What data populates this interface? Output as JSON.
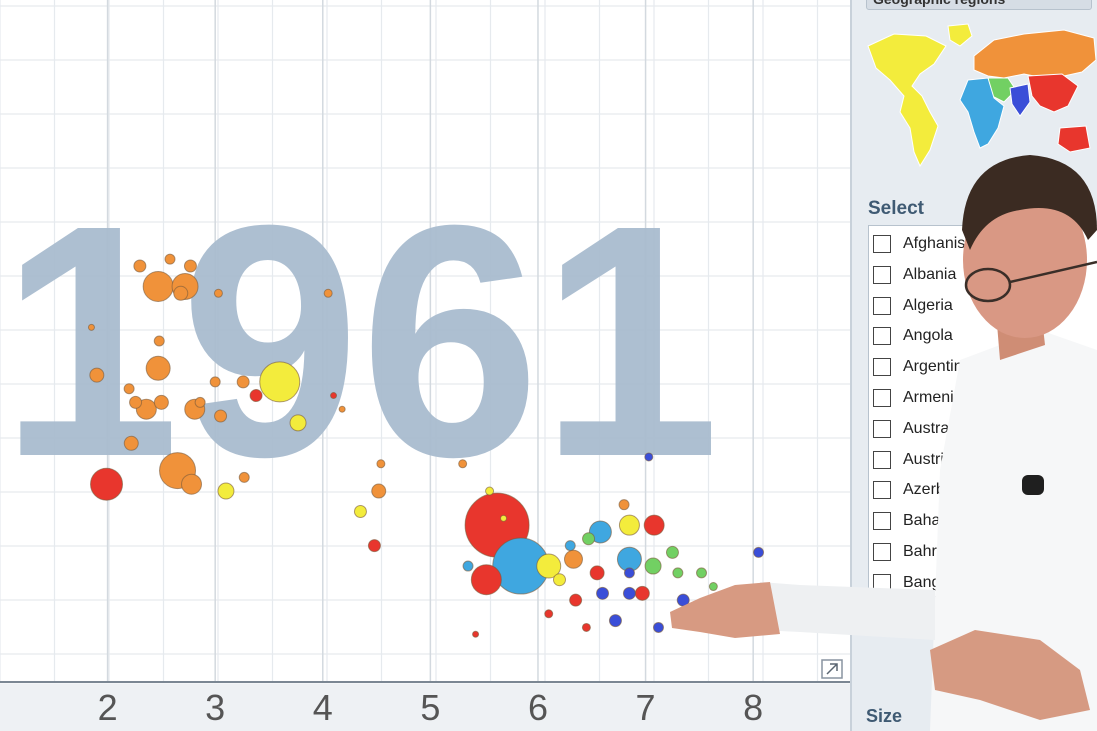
{
  "chart_data": {
    "type": "scatter",
    "title": "",
    "year": "1961",
    "xlabel": "",
    "ylabel": "",
    "xlim": [
      1,
      8.9
    ],
    "ylim": [
      0,
      100
    ],
    "x_ticks": [
      "2",
      "3",
      "4",
      "5",
      "6",
      "7",
      "8"
    ],
    "grid": true,
    "region_colors": {
      "orange": "#f0923a",
      "yellow": "#f3ec3c",
      "red": "#e8362d",
      "blue": "#3a4ed8",
      "cyan": "#3fa7e0",
      "green": "#72d063"
    },
    "points": [
      {
        "x": 1.99,
        "y": 29,
        "r": 16,
        "region": "red"
      },
      {
        "x": 2.47,
        "y": 58,
        "r": 15,
        "region": "orange"
      },
      {
        "x": 2.72,
        "y": 58,
        "r": 13,
        "region": "orange"
      },
      {
        "x": 2.77,
        "y": 61,
        "r": 6,
        "region": "orange"
      },
      {
        "x": 2.58,
        "y": 62,
        "r": 5,
        "region": "orange"
      },
      {
        "x": 2.68,
        "y": 57,
        "r": 7,
        "region": "orange"
      },
      {
        "x": 2.3,
        "y": 61,
        "r": 6,
        "region": "orange"
      },
      {
        "x": 2.47,
        "y": 46,
        "r": 12,
        "region": "orange"
      },
      {
        "x": 1.9,
        "y": 45,
        "r": 7,
        "region": "orange"
      },
      {
        "x": 2.48,
        "y": 50,
        "r": 5,
        "region": "orange"
      },
      {
        "x": 2.36,
        "y": 40,
        "r": 10,
        "region": "orange"
      },
      {
        "x": 2.26,
        "y": 41,
        "r": 6,
        "region": "orange"
      },
      {
        "x": 2.81,
        "y": 40,
        "r": 10,
        "region": "orange"
      },
      {
        "x": 3.05,
        "y": 39,
        "r": 6,
        "region": "orange"
      },
      {
        "x": 2.22,
        "y": 35,
        "r": 7,
        "region": "orange"
      },
      {
        "x": 2.65,
        "y": 31,
        "r": 18,
        "region": "orange"
      },
      {
        "x": 2.78,
        "y": 29,
        "r": 10,
        "region": "orange"
      },
      {
        "x": 2.2,
        "y": 43,
        "r": 5,
        "region": "orange"
      },
      {
        "x": 2.5,
        "y": 41,
        "r": 7,
        "region": "orange"
      },
      {
        "x": 3.0,
        "y": 44,
        "r": 5,
        "region": "orange"
      },
      {
        "x": 2.86,
        "y": 41,
        "r": 5,
        "region": "orange"
      },
      {
        "x": 1.85,
        "y": 52,
        "r": 3,
        "region": "orange"
      },
      {
        "x": 3.03,
        "y": 57,
        "r": 4,
        "region": "orange"
      },
      {
        "x": 3.26,
        "y": 44,
        "r": 6,
        "region": "orange"
      },
      {
        "x": 3.6,
        "y": 44,
        "r": 20,
        "region": "yellow"
      },
      {
        "x": 3.38,
        "y": 42,
        "r": 6,
        "region": "red"
      },
      {
        "x": 3.77,
        "y": 38,
        "r": 8,
        "region": "yellow"
      },
      {
        "x": 3.1,
        "y": 28,
        "r": 8,
        "region": "yellow"
      },
      {
        "x": 3.27,
        "y": 30,
        "r": 5,
        "region": "orange"
      },
      {
        "x": 4.05,
        "y": 57,
        "r": 4,
        "region": "orange"
      },
      {
        "x": 4.1,
        "y": 42,
        "r": 3,
        "region": "red"
      },
      {
        "x": 4.52,
        "y": 28,
        "r": 7,
        "region": "orange"
      },
      {
        "x": 4.35,
        "y": 25,
        "r": 6,
        "region": "yellow"
      },
      {
        "x": 4.48,
        "y": 20,
        "r": 6,
        "region": "red"
      },
      {
        "x": 4.54,
        "y": 32,
        "r": 4,
        "region": "orange"
      },
      {
        "x": 5.62,
        "y": 23,
        "r": 32,
        "region": "red"
      },
      {
        "x": 5.84,
        "y": 17,
        "r": 28,
        "region": "cyan"
      },
      {
        "x": 5.52,
        "y": 15,
        "r": 15,
        "region": "red"
      },
      {
        "x": 6.1,
        "y": 17,
        "r": 12,
        "region": "yellow"
      },
      {
        "x": 6.33,
        "y": 18,
        "r": 9,
        "region": "orange"
      },
      {
        "x": 6.55,
        "y": 16,
        "r": 7,
        "region": "red"
      },
      {
        "x": 6.58,
        "y": 22,
        "r": 11,
        "region": "cyan"
      },
      {
        "x": 6.85,
        "y": 23,
        "r": 10,
        "region": "yellow"
      },
      {
        "x": 7.08,
        "y": 23,
        "r": 10,
        "region": "red"
      },
      {
        "x": 6.85,
        "y": 18,
        "r": 12,
        "region": "cyan"
      },
      {
        "x": 7.07,
        "y": 17,
        "r": 8,
        "region": "green"
      },
      {
        "x": 6.97,
        "y": 13,
        "r": 7,
        "region": "red"
      },
      {
        "x": 6.85,
        "y": 13,
        "r": 6,
        "region": "blue"
      },
      {
        "x": 6.6,
        "y": 13,
        "r": 6,
        "region": "blue"
      },
      {
        "x": 6.47,
        "y": 21,
        "r": 6,
        "region": "green"
      },
      {
        "x": 6.35,
        "y": 12,
        "r": 6,
        "region": "red"
      },
      {
        "x": 6.2,
        "y": 15,
        "r": 6,
        "region": "yellow"
      },
      {
        "x": 7.25,
        "y": 19,
        "r": 6,
        "region": "green"
      },
      {
        "x": 7.35,
        "y": 12,
        "r": 6,
        "region": "blue"
      },
      {
        "x": 7.52,
        "y": 16,
        "r": 5,
        "region": "green"
      },
      {
        "x": 7.3,
        "y": 16,
        "r": 5,
        "region": "green"
      },
      {
        "x": 7.48,
        "y": 11,
        "r": 4,
        "region": "yellow"
      },
      {
        "x": 7.63,
        "y": 14,
        "r": 4,
        "region": "green"
      },
      {
        "x": 7.8,
        "y": 10,
        "r": 4,
        "region": "yellow"
      },
      {
        "x": 8.05,
        "y": 19,
        "r": 5,
        "region": "blue"
      },
      {
        "x": 8.38,
        "y": 12,
        "r": 5,
        "region": "green"
      },
      {
        "x": 6.72,
        "y": 9,
        "r": 6,
        "region": "blue"
      },
      {
        "x": 7.12,
        "y": 8,
        "r": 5,
        "region": "blue"
      },
      {
        "x": 6.85,
        "y": 16,
        "r": 5,
        "region": "blue"
      },
      {
        "x": 6.45,
        "y": 8,
        "r": 4,
        "region": "red"
      },
      {
        "x": 6.1,
        "y": 10,
        "r": 4,
        "region": "red"
      },
      {
        "x": 7.03,
        "y": 33,
        "r": 4,
        "region": "blue"
      },
      {
        "x": 6.8,
        "y": 26,
        "r": 5,
        "region": "orange"
      },
      {
        "x": 5.55,
        "y": 28,
        "r": 4,
        "region": "yellow"
      },
      {
        "x": 5.68,
        "y": 24,
        "r": 3,
        "region": "yellow"
      },
      {
        "x": 5.3,
        "y": 32,
        "r": 4,
        "region": "orange"
      },
      {
        "x": 6.3,
        "y": 20,
        "r": 5,
        "region": "cyan"
      },
      {
        "x": 5.35,
        "y": 17,
        "r": 5,
        "region": "cyan"
      },
      {
        "x": 5.42,
        "y": 7,
        "r": 3,
        "region": "red"
      },
      {
        "x": 4.18,
        "y": 40,
        "r": 3,
        "region": "orange"
      }
    ]
  },
  "side_panel": {
    "header": "Geographic regions",
    "select_title": "Select",
    "size_title": "Size",
    "countries": [
      "Afghanistan",
      "Albania",
      "Algeria",
      "Angola",
      "Argentina",
      "Armenia",
      "Australia",
      "Austria",
      "Azerbaijan",
      "Bahamas",
      "Bahrain",
      "Bangladesh"
    ],
    "map_colors": {
      "americas": "#f3ec3c",
      "europe_asia": "#f0923a",
      "africa": "#3fa7e0",
      "middle_east": "#72d063",
      "south_asia": "#3a4ed8",
      "east_asia": "#e8362d"
    }
  }
}
